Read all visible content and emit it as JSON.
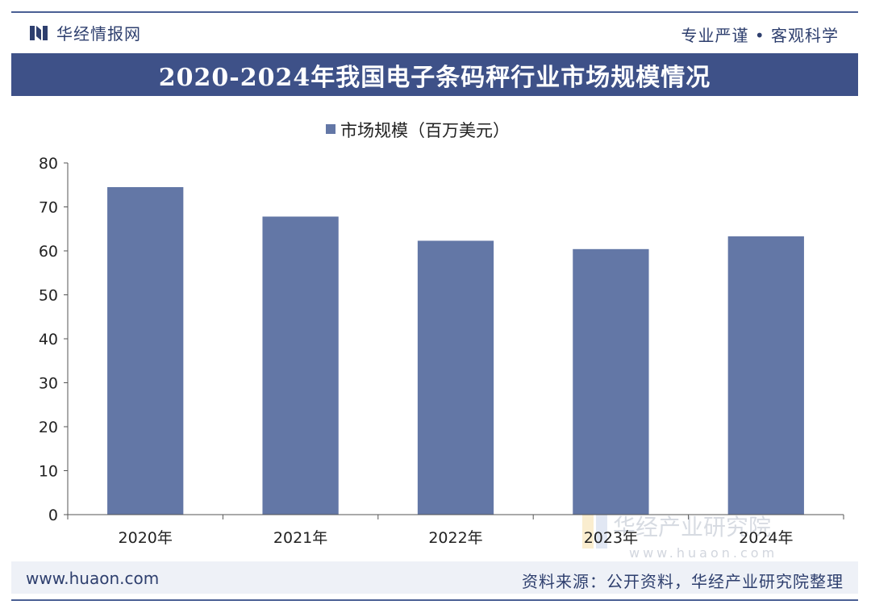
{
  "header": {
    "brand": "华经情报网",
    "slogan": "专业严谨 • 客观科学"
  },
  "title": "2020-2024年我国电子条码秤行业市场规模情况",
  "chart_data": {
    "type": "bar",
    "title": "2020-2024年我国电子条码秤行业市场规模情况",
    "categories": [
      "2020年",
      "2021年",
      "2022年",
      "2023年",
      "2024年"
    ],
    "series": [
      {
        "name": "市场规模（百万美元）",
        "values": [
          74.5,
          67.8,
          62.3,
          60.4,
          63.3
        ]
      }
    ],
    "xlabel": "",
    "ylabel": "",
    "ylim": [
      0,
      80
    ],
    "yticks": [
      0,
      10,
      20,
      30,
      40,
      50,
      60,
      70,
      80
    ],
    "legend_position": "top-center",
    "grid": false
  },
  "watermark": {
    "name": "华经产业研究院",
    "url": "www.huaon.com"
  },
  "footer": {
    "url": "www.huaon.com",
    "source": "资料来源：公开资料，华经产业研究院整理"
  },
  "colors": {
    "bar": "#6377a6",
    "title_bg": "#3e5188",
    "brand": "#2e3f6e",
    "axis": "#555555"
  }
}
